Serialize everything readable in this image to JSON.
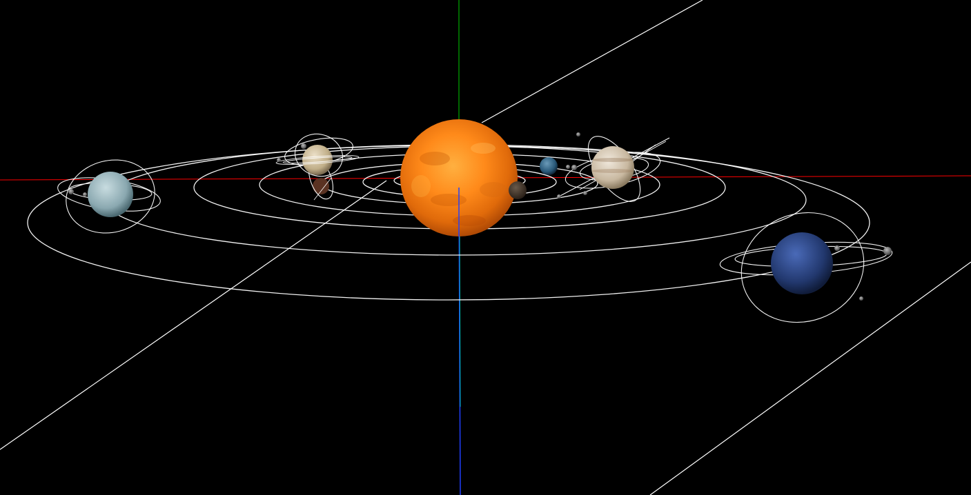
{
  "scene": {
    "background": "#000000",
    "axis_colors": {
      "x": "#ff0000",
      "y": "#00ff00",
      "z": "#0000ff"
    },
    "orbit_color": "#ffffff",
    "bodies": [
      {
        "name_icon": "sun-icon",
        "color": "#ff8c1a"
      },
      {
        "name_icon": "mercury-icon",
        "color": "#5a4a3e"
      },
      {
        "name_icon": "venus-icon",
        "color": "#8a5a3a"
      },
      {
        "name_icon": "earth-icon",
        "color": "#3a6a8a"
      },
      {
        "name_icon": "mars-icon",
        "color": "#6a3a2a"
      },
      {
        "name_icon": "jupiter-icon",
        "color": "#d8c8b0"
      },
      {
        "name_icon": "saturn-icon",
        "color": "#c8b890"
      },
      {
        "name_icon": "uranus-icon",
        "color": "#9ab8c0"
      },
      {
        "name_icon": "neptune-icon",
        "color": "#2a4a8a"
      }
    ]
  }
}
